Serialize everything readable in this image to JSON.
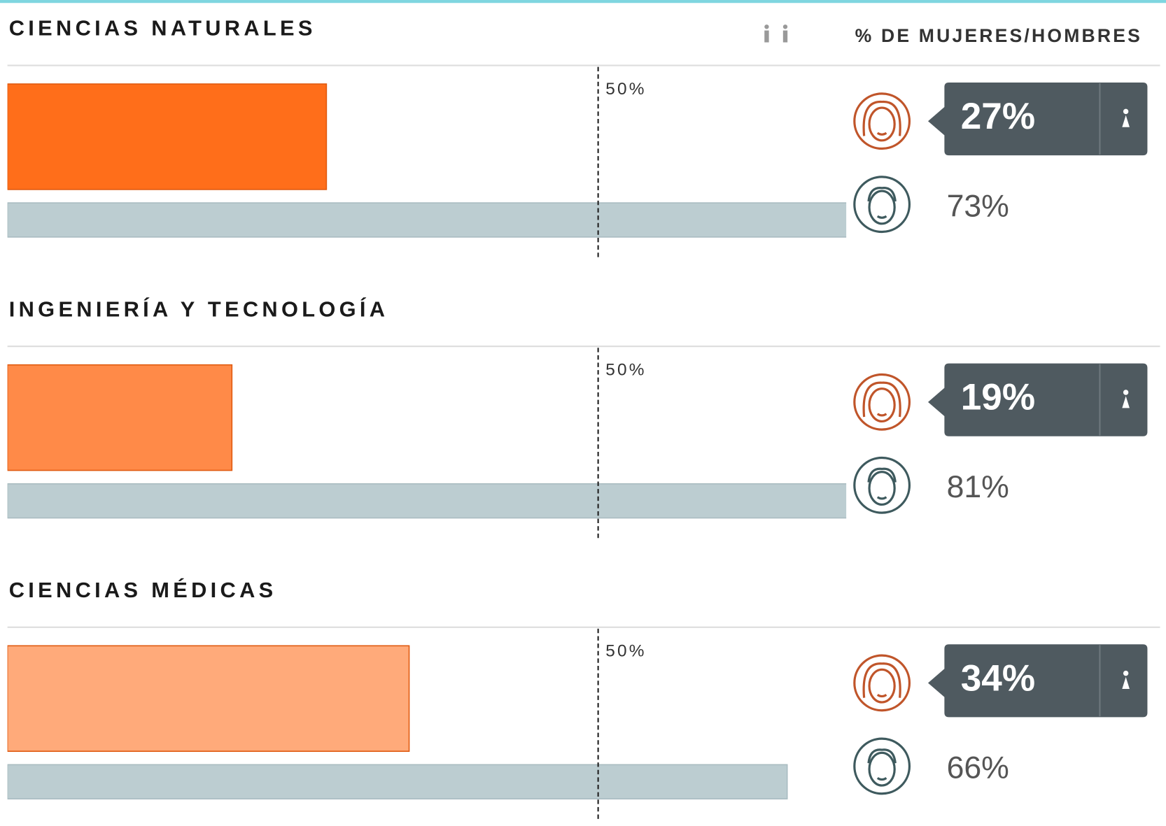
{
  "legend_label": "% DE MUJERES/HOMBRES",
  "chart_data": [
    {
      "type": "bar",
      "orientation": "horizontal",
      "title": "CIENCIAS NATURALES",
      "series": [
        {
          "color": "#ff6e1a",
          "values": [
            27
          ],
          "value_labels": [
            "27%"
          ]
        },
        {
          "color": "#bccdd1",
          "values": [
            73
          ],
          "value_labels": [
            "73%"
          ]
        }
      ],
      "xlim": [
        0,
        71
      ],
      "reference": {
        "value": 50,
        "label": "50%"
      }
    },
    {
      "type": "bar",
      "orientation": "horizontal",
      "title": "INGENIERÍA Y TECNOLOGÍA",
      "series": [
        {
          "color": "#ff8a48",
          "values": [
            19
          ],
          "value_labels": [
            "19%"
          ]
        },
        {
          "color": "#bccdd1",
          "values": [
            81
          ],
          "value_labels": [
            "81%"
          ]
        }
      ],
      "xlim": [
        0,
        71
      ],
      "reference": {
        "value": 50,
        "label": "50%"
      }
    },
    {
      "type": "bar",
      "orientation": "horizontal",
      "title": "CIENCIAS MÉDICAS",
      "series": [
        {
          "color": "#ffaa7a",
          "values": [
            34
          ],
          "value_labels": [
            "34%"
          ]
        },
        {
          "color": "#bccdd1",
          "values": [
            66
          ],
          "value_labels": [
            "66%"
          ]
        }
      ],
      "xlim": [
        0,
        71
      ],
      "reference": {
        "value": 50,
        "label": "50%"
      }
    }
  ]
}
